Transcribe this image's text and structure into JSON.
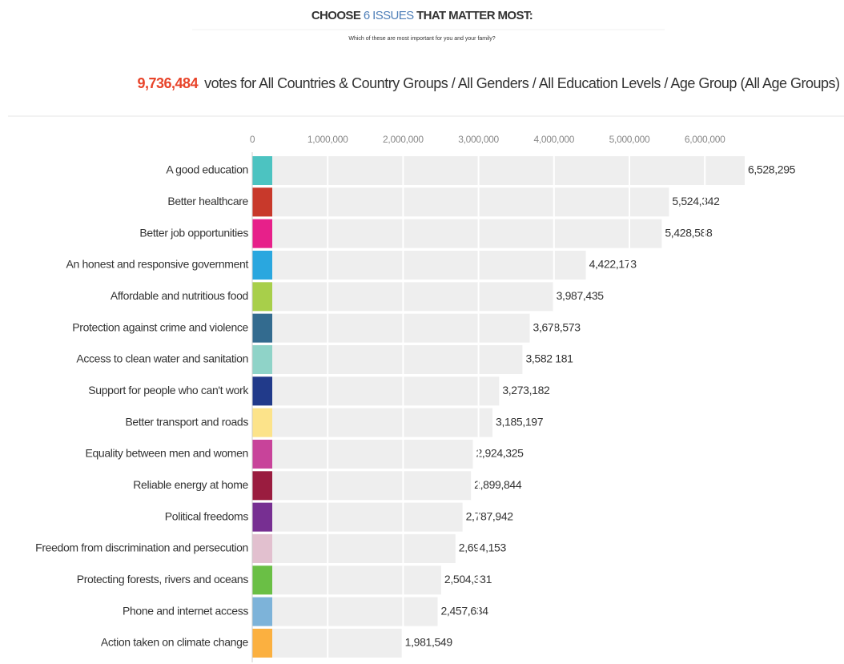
{
  "chart_data": {
    "type": "bar",
    "orientation": "horizontal",
    "title_parts": [
      "CHOOSE ",
      "6 ISSUES",
      " THAT MATTER MOST:"
    ],
    "subtitle": "Which of these are most important for you and your family?",
    "total_votes": "9,736,484",
    "votes_text": "votes for All Countries & Country Groups / All Genders / All Education Levels / Age Group (All Age Groups)",
    "categories": [
      "A good education",
      "Better healthcare",
      "Better job opportunities",
      "An honest and responsive government",
      "Affordable and nutritious food",
      "Protection against crime and violence",
      "Access to clean water and sanitation",
      "Support for people who can't work",
      "Better transport and roads",
      "Equality between men and women",
      "Reliable energy at home",
      "Political freedoms",
      "Freedom from discrimination and persecution",
      "Protecting forests, rivers and oceans",
      "Phone and internet access",
      "Action taken on climate change"
    ],
    "values": [
      6528295,
      5524342,
      5428588,
      4422173,
      3987435,
      3678573,
      3582181,
      3273182,
      3185197,
      2924325,
      2899844,
      2787942,
      2694153,
      2504331,
      2457634,
      1981549
    ],
    "value_labels": [
      "6,528,295",
      "5,524,342",
      "5,428,588",
      "4,422,173",
      "3,987,435",
      "3,678,573",
      "3,582,181",
      "3,273,182",
      "3,185,197",
      "2,924,325",
      "2,899,844",
      "2,787,942",
      "2,694,153",
      "2,504,331",
      "2,457,634",
      "1,981,549"
    ],
    "colors": [
      "#4cc3c1",
      "#c8392b",
      "#e7208a",
      "#2aa7df",
      "#a8cf4a",
      "#336b8f",
      "#8fd3c8",
      "#213a8a",
      "#fce38a",
      "#c8439a",
      "#9a1c3f",
      "#772f92",
      "#e2c0cf",
      "#6abf45",
      "#7db3d9",
      "#fbb040"
    ],
    "bar_color": "#eeeeee",
    "xlim": [
      0,
      7000000
    ],
    "xticks": [
      0,
      {
        "value": 1000000,
        "label": "1,000,000"
      },
      {
        "value": 2000000,
        "label": "2,000,000"
      },
      {
        "value": 3000000,
        "label": "3,000,000"
      },
      {
        "value": 4000000,
        "label": "4,000,000"
      },
      {
        "value": 5000000,
        "label": "5,000,000"
      },
      {
        "value": 6000000,
        "label": "6,000,000"
      }
    ],
    "grid": true
  }
}
